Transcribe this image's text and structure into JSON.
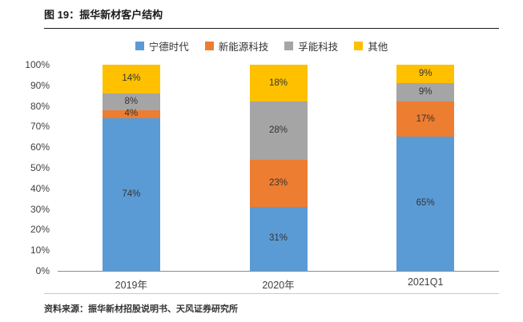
{
  "header": {
    "title": "图 19：振华新材客户结构"
  },
  "footer": {
    "source": "资料来源：振华新材招股说明书、天风证券研究所"
  },
  "chart_data": {
    "type": "bar",
    "stacked": true,
    "title": "图 19：振华新材客户结构",
    "categories": [
      "2019年",
      "2020年",
      "2021Q1"
    ],
    "series": [
      {
        "name": "宁德时代",
        "color": "#5B9BD5",
        "values": [
          74,
          31,
          65
        ]
      },
      {
        "name": "新能源科技",
        "color": "#ED7D31",
        "values": [
          4,
          23,
          17
        ]
      },
      {
        "name": "孚能科技",
        "color": "#A5A5A5",
        "values": [
          8,
          28,
          9
        ]
      },
      {
        "name": "其他",
        "color": "#FFC000",
        "values": [
          14,
          18,
          9
        ]
      }
    ],
    "xlabel": "",
    "ylabel": "",
    "ylim": [
      0,
      100
    ],
    "yticks": [
      "0%",
      "10%",
      "20%",
      "30%",
      "40%",
      "50%",
      "60%",
      "70%",
      "80%",
      "90%",
      "100%"
    ],
    "grid": false,
    "legend_position": "top",
    "data_label_format": "percent"
  }
}
